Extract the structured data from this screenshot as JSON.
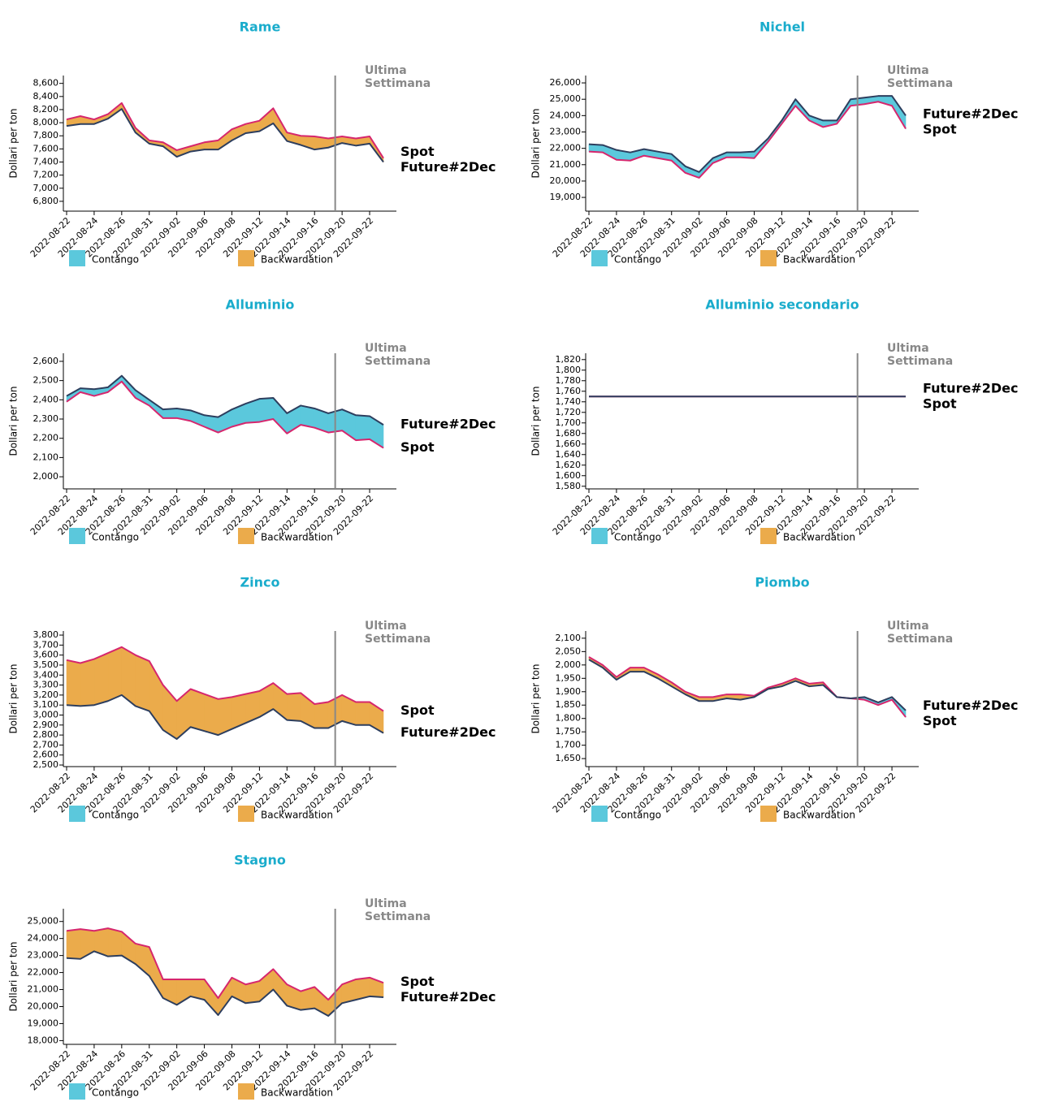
{
  "chart_data": [
    {
      "type": "line",
      "title": "Rame",
      "y_label": "Dollari per ton",
      "categories": [
        "2022-08-22",
        null,
        "2022-08-24",
        null,
        "2022-08-26",
        null,
        "2022-08-31",
        null,
        "2022-09-02",
        null,
        "2022-09-06",
        null,
        "2022-09-08",
        null,
        "2022-09-12",
        null,
        "2022-09-14",
        null,
        "2022-09-16",
        null,
        "2022-09-20",
        null,
        "2022-09-22",
        null
      ],
      "series": [
        {
          "name": "Spot",
          "color": "#d6266d",
          "values": [
            8050,
            8100,
            8050,
            8130,
            8300,
            7920,
            7730,
            7700,
            7580,
            7640,
            7700,
            7730,
            7900,
            7980,
            8030,
            8220,
            7850,
            7800,
            7790,
            7760,
            7790,
            7760,
            7790,
            7460
          ]
        },
        {
          "name": "Future#2Dec",
          "color": "#2d3e5e",
          "values": [
            7950,
            7980,
            7980,
            8060,
            8210,
            7850,
            7680,
            7640,
            7480,
            7560,
            7590,
            7590,
            7730,
            7840,
            7870,
            7990,
            7720,
            7660,
            7590,
            7620,
            7690,
            7650,
            7680,
            7400
          ]
        }
      ],
      "ylim": [
        6650,
        8720
      ],
      "yticks": [
        {
          "value": 6800,
          "label": "6,800"
        },
        {
          "value": 7000,
          "label": "7,000"
        },
        {
          "value": 7200,
          "label": "7,200"
        },
        {
          "value": 7400,
          "label": "7,400"
        },
        {
          "value": 7600,
          "label": "7,600"
        },
        {
          "value": 7800,
          "label": "7,800"
        },
        {
          "value": 8000,
          "label": "8,000"
        },
        {
          "value": 8200,
          "label": "8,200"
        },
        {
          "value": 8400,
          "label": "8,400"
        },
        {
          "value": 8600,
          "label": "8,600"
        }
      ],
      "fill_legend": [
        {
          "name": "Contango",
          "color": "#5bc8dc"
        },
        {
          "name": "Backwardation",
          "color": "#ebab4b"
        }
      ],
      "annotation": [
        "Ultima",
        "Settimana"
      ]
    },
    {
      "type": "line",
      "title": "Nichel",
      "y_label": "Dollari per ton",
      "categories": [
        "2022-08-22",
        null,
        "2022-08-24",
        null,
        "2022-08-26",
        null,
        "2022-08-31",
        null,
        "2022-09-02",
        null,
        "2022-09-06",
        null,
        "2022-09-08",
        null,
        "2022-09-12",
        null,
        "2022-09-14",
        null,
        "2022-09-16",
        null,
        "2022-09-20",
        null,
        "2022-09-22",
        null
      ],
      "series": [
        {
          "name": "Spot",
          "color": "#d6266d",
          "values": [
            21800,
            21750,
            21300,
            21250,
            21550,
            21400,
            21250,
            20500,
            20200,
            21100,
            21450,
            21450,
            21400,
            22400,
            23500,
            24600,
            23700,
            23300,
            23500,
            24600,
            24700,
            24850,
            24600,
            23200
          ]
        },
        {
          "name": "Future#2Dec",
          "color": "#2d3e5e",
          "values": [
            22250,
            22200,
            21900,
            21750,
            21950,
            21800,
            21650,
            20900,
            20550,
            21400,
            21750,
            21750,
            21800,
            22600,
            23700,
            25000,
            24000,
            23700,
            23700,
            25000,
            25100,
            25200,
            25200,
            24000
          ]
        }
      ],
      "ylim": [
        18160,
        26450
      ],
      "yticks": [
        {
          "value": 19000,
          "label": "19,000"
        },
        {
          "value": 20000,
          "label": "20,000"
        },
        {
          "value": 21000,
          "label": "21,000"
        },
        {
          "value": 22000,
          "label": "22,000"
        },
        {
          "value": 23000,
          "label": "23,000"
        },
        {
          "value": 24000,
          "label": "24,000"
        },
        {
          "value": 25000,
          "label": "25,000"
        },
        {
          "value": 26000,
          "label": "26,000"
        }
      ],
      "fill_legend": [
        {
          "name": "Contango",
          "color": "#5bc8dc"
        },
        {
          "name": "Backwardation",
          "color": "#ebab4b"
        }
      ],
      "annotation": [
        "Ultima",
        "Settimana"
      ]
    },
    {
      "type": "line",
      "title": "Alluminio",
      "y_label": "Dollari per ton",
      "categories": [
        "2022-08-22",
        null,
        "2022-08-24",
        null,
        "2022-08-26",
        null,
        "2022-08-31",
        null,
        "2022-09-02",
        null,
        "2022-09-06",
        null,
        "2022-09-08",
        null,
        "2022-09-12",
        null,
        "2022-09-14",
        null,
        "2022-09-16",
        null,
        "2022-09-20",
        null,
        "2022-09-22",
        null
      ],
      "series": [
        {
          "name": "Spot",
          "color": "#d6266d",
          "values": [
            2390,
            2440,
            2420,
            2440,
            2495,
            2410,
            2370,
            2305,
            2305,
            2290,
            2260,
            2230,
            2260,
            2280,
            2285,
            2300,
            2225,
            2270,
            2255,
            2230,
            2240,
            2190,
            2195,
            2150
          ]
        },
        {
          "name": "Future#2Dec",
          "color": "#2d3e5e",
          "values": [
            2420,
            2460,
            2455,
            2465,
            2525,
            2450,
            2400,
            2350,
            2355,
            2345,
            2320,
            2310,
            2350,
            2380,
            2405,
            2410,
            2330,
            2370,
            2355,
            2330,
            2350,
            2320,
            2315,
            2270
          ]
        }
      ],
      "ylim": [
        1937,
        2642
      ],
      "yticks": [
        {
          "value": 2000,
          "label": "2,000"
        },
        {
          "value": 2100,
          "label": "2,100"
        },
        {
          "value": 2200,
          "label": "2,200"
        },
        {
          "value": 2300,
          "label": "2,300"
        },
        {
          "value": 2400,
          "label": "2,400"
        },
        {
          "value": 2500,
          "label": "2,500"
        },
        {
          "value": 2600,
          "label": "2,600"
        }
      ],
      "fill_legend": [
        {
          "name": "Contango",
          "color": "#5bc8dc"
        },
        {
          "name": "Backwardation",
          "color": "#ebab4b"
        }
      ],
      "annotation": [
        "Ultima",
        "Settimana"
      ]
    },
    {
      "type": "line",
      "title": "Alluminio secondario",
      "y_label": "Dollari per ton",
      "categories": [
        "2022-08-22",
        null,
        "2022-08-24",
        null,
        "2022-08-26",
        null,
        "2022-08-31",
        null,
        "2022-09-02",
        null,
        "2022-09-06",
        null,
        "2022-09-08",
        null,
        "2022-09-12",
        null,
        "2022-09-14",
        null,
        "2022-09-16",
        null,
        "2022-09-20",
        null,
        "2022-09-22",
        null
      ],
      "series": [
        {
          "name": "Spot",
          "color": "#d6266d",
          "values": [
            1750,
            1750,
            1750,
            1750,
            1750,
            1750,
            1750,
            1750,
            1750,
            1750,
            1750,
            1750,
            1750,
            1750,
            1750,
            1750,
            1750,
            1750,
            1750,
            1750,
            1750,
            1750,
            1750,
            1750
          ]
        },
        {
          "name": "Future#2Dec",
          "color": "#2d3e5e",
          "values": [
            1750,
            1750,
            1750,
            1750,
            1750,
            1750,
            1750,
            1750,
            1750,
            1750,
            1750,
            1750,
            1750,
            1750,
            1750,
            1750,
            1750,
            1750,
            1750,
            1750,
            1750,
            1750,
            1750,
            1750
          ]
        }
      ],
      "ylim": [
        1575,
        1832
      ],
      "yticks": [
        {
          "value": 1580,
          "label": "1,580"
        },
        {
          "value": 1600,
          "label": "1,600"
        },
        {
          "value": 1620,
          "label": "1,620"
        },
        {
          "value": 1640,
          "label": "1,640"
        },
        {
          "value": 1660,
          "label": "1,660"
        },
        {
          "value": 1680,
          "label": "1,680"
        },
        {
          "value": 1700,
          "label": "1,700"
        },
        {
          "value": 1720,
          "label": "1,720"
        },
        {
          "value": 1740,
          "label": "1,740"
        },
        {
          "value": 1760,
          "label": "1,760"
        },
        {
          "value": 1780,
          "label": "1,780"
        },
        {
          "value": 1800,
          "label": "1,800"
        },
        {
          "value": 1820,
          "label": "1,820"
        }
      ],
      "fill_legend": [
        {
          "name": "Contango",
          "color": "#5bc8dc"
        },
        {
          "name": "Backwardation",
          "color": "#ebab4b"
        }
      ],
      "annotation": [
        "Ultima",
        "Settimana"
      ]
    },
    {
      "type": "line",
      "title": "Zinco",
      "y_label": "Dollari per ton",
      "categories": [
        "2022-08-22",
        null,
        "2022-08-24",
        null,
        "2022-08-26",
        null,
        "2022-08-31",
        null,
        "2022-09-02",
        null,
        "2022-09-06",
        null,
        "2022-09-08",
        null,
        "2022-09-12",
        null,
        "2022-09-14",
        null,
        "2022-09-16",
        null,
        "2022-09-20",
        null,
        "2022-09-22",
        null
      ],
      "series": [
        {
          "name": "Spot",
          "color": "#d6266d",
          "values": [
            3550,
            3520,
            3560,
            3620,
            3680,
            3600,
            3540,
            3300,
            3140,
            3260,
            3210,
            3160,
            3180,
            3210,
            3240,
            3320,
            3210,
            3220,
            3110,
            3130,
            3200,
            3130,
            3130,
            3040
          ]
        },
        {
          "name": "Future#2Dec",
          "color": "#2d3e5e",
          "values": [
            3100,
            3090,
            3100,
            3140,
            3200,
            3090,
            3040,
            2850,
            2760,
            2880,
            2840,
            2800,
            2860,
            2920,
            2980,
            3060,
            2950,
            2940,
            2870,
            2870,
            2940,
            2900,
            2900,
            2820
          ]
        }
      ],
      "ylim": [
        2484,
        3841
      ],
      "yticks": [
        {
          "value": 2500,
          "label": "2,500"
        },
        {
          "value": 2600,
          "label": "2,600"
        },
        {
          "value": 2700,
          "label": "2,700"
        },
        {
          "value": 2800,
          "label": "2,800"
        },
        {
          "value": 2900,
          "label": "2,900"
        },
        {
          "value": 3000,
          "label": "3,000"
        },
        {
          "value": 3100,
          "label": "3,100"
        },
        {
          "value": 3200,
          "label": "3,200"
        },
        {
          "value": 3300,
          "label": "3,300"
        },
        {
          "value": 3400,
          "label": "3,400"
        },
        {
          "value": 3500,
          "label": "3,500"
        },
        {
          "value": 3600,
          "label": "3,600"
        },
        {
          "value": 3700,
          "label": "3,700"
        },
        {
          "value": 3800,
          "label": "3,800"
        }
      ],
      "fill_legend": [
        {
          "name": "Contango",
          "color": "#5bc8dc"
        },
        {
          "name": "Backwardation",
          "color": "#ebab4b"
        }
      ],
      "annotation": [
        "Ultima",
        "Settimana"
      ]
    },
    {
      "type": "line",
      "title": "Piombo",
      "y_label": "Dollari per ton",
      "categories": [
        "2022-08-22",
        null,
        "2022-08-24",
        null,
        "2022-08-26",
        null,
        "2022-08-31",
        null,
        "2022-09-02",
        null,
        "2022-09-06",
        null,
        "2022-09-08",
        null,
        "2022-09-12",
        null,
        "2022-09-14",
        null,
        "2022-09-16",
        null,
        "2022-09-20",
        null,
        "2022-09-22",
        null
      ],
      "series": [
        {
          "name": "Spot",
          "color": "#d6266d",
          "values": [
            2030,
            2000,
            1955,
            1990,
            1990,
            1965,
            1935,
            1900,
            1880,
            1880,
            1890,
            1890,
            1885,
            1915,
            1930,
            1950,
            1930,
            1935,
            1880,
            1875,
            1870,
            1850,
            1870,
            1805
          ]
        },
        {
          "name": "Future#2Dec",
          "color": "#2d3e5e",
          "values": [
            2020,
            1990,
            1945,
            1975,
            1975,
            1950,
            1920,
            1890,
            1865,
            1865,
            1875,
            1870,
            1880,
            1910,
            1920,
            1940,
            1920,
            1925,
            1880,
            1875,
            1880,
            1860,
            1880,
            1830
          ]
        }
      ],
      "ylim": [
        1620,
        2127
      ],
      "yticks": [
        {
          "value": 1650,
          "label": "1,650"
        },
        {
          "value": 1700,
          "label": "1,700"
        },
        {
          "value": 1750,
          "label": "1,750"
        },
        {
          "value": 1800,
          "label": "1,800"
        },
        {
          "value": 1850,
          "label": "1,850"
        },
        {
          "value": 1900,
          "label": "1,900"
        },
        {
          "value": 1950,
          "label": "1,950"
        },
        {
          "value": 2000,
          "label": "2,000"
        },
        {
          "value": 2050,
          "label": "2,050"
        },
        {
          "value": 2100,
          "label": "2,100"
        }
      ],
      "fill_legend": [
        {
          "name": "Contango",
          "color": "#5bc8dc"
        },
        {
          "name": "Backwardation",
          "color": "#ebab4b"
        }
      ],
      "annotation": [
        "Ultima",
        "Settimana"
      ]
    },
    {
      "type": "line",
      "title": "Stagno",
      "y_label": "Dollari per ton",
      "categories": [
        "2022-08-22",
        null,
        "2022-08-24",
        null,
        "2022-08-26",
        null,
        "2022-08-31",
        null,
        "2022-09-02",
        null,
        "2022-09-06",
        null,
        "2022-09-08",
        null,
        "2022-09-12",
        null,
        "2022-09-14",
        null,
        "2022-09-16",
        null,
        "2022-09-20",
        null,
        "2022-09-22",
        null
      ],
      "series": [
        {
          "name": "Spot",
          "color": "#d6266d",
          "values": [
            24450,
            24550,
            24450,
            24600,
            24400,
            23700,
            23500,
            21600,
            21600,
            21600,
            21600,
            20500,
            21700,
            21300,
            21500,
            22200,
            21300,
            20900,
            21150,
            20400,
            21300,
            21600,
            21700,
            21400
          ]
        },
        {
          "name": "Future#2Dec",
          "color": "#2d3e5e",
          "values": [
            22850,
            22800,
            23250,
            22950,
            23000,
            22500,
            21800,
            20500,
            20100,
            20600,
            20400,
            19500,
            20600,
            20200,
            20300,
            21000,
            20050,
            19800,
            19900,
            19450,
            20200,
            20400,
            20600,
            20550
          ]
        }
      ],
      "ylim": [
        17780,
        25750
      ],
      "yticks": [
        {
          "value": 18000,
          "label": "18,000"
        },
        {
          "value": 19000,
          "label": "19,000"
        },
        {
          "value": 20000,
          "label": "20,000"
        },
        {
          "value": 21000,
          "label": "21,000"
        },
        {
          "value": 22000,
          "label": "22,000"
        },
        {
          "value": 23000,
          "label": "23,000"
        },
        {
          "value": 24000,
          "label": "24,000"
        },
        {
          "value": 25000,
          "label": "25,000"
        }
      ],
      "fill_legend": [
        {
          "name": "Contango",
          "color": "#5bc8dc"
        },
        {
          "name": "Backwardation",
          "color": "#ebab4b"
        }
      ],
      "annotation": [
        "Ultima",
        "Settimana"
      ]
    }
  ]
}
